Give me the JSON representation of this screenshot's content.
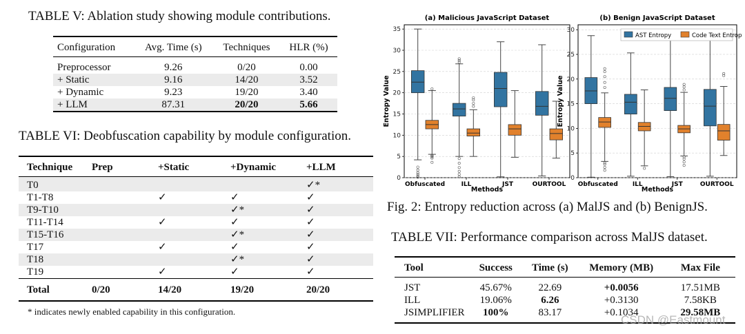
{
  "table5": {
    "caption": "TABLE V: Ablation study showing module contributions.",
    "headers": [
      "Configuration",
      "Avg. Time (s)",
      "Techniques",
      "HLR (%)"
    ],
    "rows": [
      [
        "Preprocessor",
        "9.26",
        "0/20",
        "0.00"
      ],
      [
        "+ Static",
        "9.16",
        "14/20",
        "3.52"
      ],
      [
        "+ Dynamic",
        "9.23",
        "19/20",
        "3.40"
      ],
      [
        "+ LLM",
        "87.31",
        "20/20",
        "5.66"
      ]
    ]
  },
  "table6": {
    "caption": "TABLE VI: Deobfuscation capability by module configuration.",
    "headers": [
      "Technique",
      "Prep",
      "+Static",
      "+Dynamic",
      "+LLM"
    ],
    "rows": [
      [
        "T0",
        "",
        "",
        "",
        "✓*"
      ],
      [
        "T1-T8",
        "",
        "✓",
        "✓",
        "✓"
      ],
      [
        "T9-T10",
        "",
        "",
        "✓*",
        "✓"
      ],
      [
        "T11-T14",
        "",
        "✓",
        "✓",
        "✓"
      ],
      [
        "T15-T16",
        "",
        "",
        "✓*",
        "✓"
      ],
      [
        "T17",
        "",
        "✓",
        "✓",
        "✓"
      ],
      [
        "T18",
        "",
        "",
        "✓*",
        "✓"
      ],
      [
        "T19",
        "",
        "✓",
        "✓",
        "✓"
      ]
    ],
    "total": [
      "Total",
      "0/20",
      "14/20",
      "19/20",
      "20/20"
    ],
    "footnote": "* indicates newly enabled capability in this configuration."
  },
  "figure": {
    "caption": "Fig. 2: Entropy reduction across (a) MalJS and (b) BenignJS."
  },
  "chart_data": [
    {
      "type": "box",
      "title": "(a) Malicious JavaScript Dataset",
      "xlabel": "Methods",
      "ylabel": "Entropy Value",
      "ylim": [
        0,
        36
      ],
      "yticks": [
        0,
        5,
        10,
        15,
        20,
        25,
        30,
        35
      ],
      "categories": [
        "Obfuscated",
        "ILL",
        "JST",
        "OURTOOL"
      ],
      "series": [
        {
          "name": "AST Entropy",
          "color": "#3274a1",
          "boxes": [
            {
              "min": 4.2,
              "q1": 20,
              "median": 22.5,
              "q3": 25.2,
              "max": 35,
              "outliers": [
                0.1,
                0.4,
                0.8,
                1.2,
                1.8,
                2.5
              ]
            },
            {
              "min": 5,
              "q1": 14.5,
              "median": 16.2,
              "q3": 17.5,
              "max": 26.8,
              "outliers": [
                0.2,
                0.8,
                1.5,
                2.4,
                3.4,
                4.5,
                27.2,
                27.6,
                28
              ]
            },
            {
              "min": 0.2,
              "q1": 16.7,
              "median": 21,
              "q3": 24.8,
              "max": 32
            },
            {
              "min": 0.4,
              "q1": 14.7,
              "median": 16.8,
              "q3": 20.3,
              "max": 31.3
            }
          ]
        },
        {
          "name": "Code Text Entropy",
          "color": "#e1812c",
          "boxes": [
            {
              "min": 5.5,
              "q1": 11.5,
              "median": 12.5,
              "q3": 13.5,
              "max": 20.5,
              "outliers": [
                3.6,
                4.6,
                4.9,
                5.1,
                5.3,
                20.9
              ]
            },
            {
              "min": 5,
              "q1": 9.8,
              "median": 10.5,
              "q3": 11.5,
              "max": 16,
              "outliers": [
                16.8,
                17.5,
                18.3,
                18.8
              ]
            },
            {
              "min": 4.8,
              "q1": 10,
              "median": 11.5,
              "q3": 12.5,
              "max": 20.5
            },
            {
              "min": 4.6,
              "q1": 8.9,
              "median": 10.4,
              "q3": 11.5,
              "max": 18
            }
          ]
        }
      ]
    },
    {
      "type": "box",
      "title": "(b) Benign JavaScript Dataset",
      "xlabel": "Methods",
      "ylabel": "Entropy Value",
      "ylim": [
        0,
        31
      ],
      "yticks": [
        0,
        5,
        10,
        15,
        20,
        25,
        30
      ],
      "categories": [
        "Obfuscated",
        "ILL",
        "JST",
        "OURTOOL"
      ],
      "legend_position": "top-right",
      "series": [
        {
          "name": "AST Entropy",
          "color": "#3274a1",
          "boxes": [
            {
              "min": 0.1,
              "q1": 15,
              "median": 17.6,
              "q3": 20.3,
              "max": 28.8
            },
            {
              "min": 0.3,
              "q1": 12.9,
              "median": 15.3,
              "q3": 16.9,
              "max": 25.3
            },
            {
              "min": 0.2,
              "q1": 13.6,
              "median": 16.1,
              "q3": 18.3,
              "max": 28.8
            },
            {
              "min": 0.3,
              "q1": 10.5,
              "median": 14.5,
              "q3": 17.9,
              "max": 28.5
            }
          ]
        },
        {
          "name": "Code Text Entropy",
          "color": "#e1812c",
          "boxes": [
            {
              "min": 3.3,
              "q1": 10.2,
              "median": 11.3,
              "q3": 12.2,
              "max": 17.2,
              "outliers": [
                1.5,
                2.1,
                2.7,
                3,
                18.3,
                19.3,
                20.5,
                21.5,
                22.1
              ]
            },
            {
              "min": 2.4,
              "q1": 9.5,
              "median": 10.4,
              "q3": 11.2,
              "max": 17.8,
              "outliers": [
                1.9
              ]
            },
            {
              "min": 4.4,
              "q1": 9.1,
              "median": 9.9,
              "q3": 10.6,
              "max": 17.3,
              "outliers": [
                2.5,
                3.2,
                3.8,
                4.2,
                17.8,
                18.4,
                18.9
              ]
            },
            {
              "min": 4.5,
              "q1": 7.6,
              "median": 9.5,
              "q3": 10.8,
              "max": 18.5,
              "outliers": [
                20.7,
                21.1
              ]
            }
          ]
        }
      ]
    }
  ],
  "table7": {
    "caption": "TABLE VII: Performance comparison across MalJS dataset.",
    "headers": [
      "Tool",
      "Success",
      "Time (s)",
      "Memory (MB)",
      "Max File"
    ],
    "rows": [
      [
        "JST",
        "45.67%",
        "22.69",
        "+0.0056",
        "17.51MB"
      ],
      [
        "ILL",
        "19.06%",
        "6.26",
        "+0.3130",
        "7.58KB"
      ],
      [
        "JSIMPLIFIER",
        "100%",
        "83.17",
        "+0.1034",
        "29.58MB"
      ]
    ]
  },
  "watermark": "CSDN @Eastmount"
}
